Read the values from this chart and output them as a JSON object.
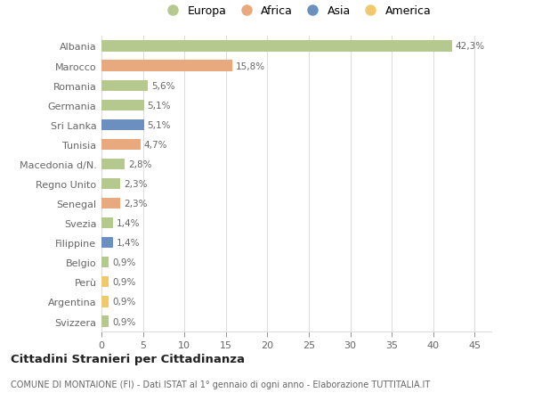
{
  "countries": [
    "Albania",
    "Marocco",
    "Romania",
    "Germania",
    "Sri Lanka",
    "Tunisia",
    "Macedonia d/N.",
    "Regno Unito",
    "Senegal",
    "Svezia",
    "Filippine",
    "Belgio",
    "Perù",
    "Argentina",
    "Svizzera"
  ],
  "values": [
    42.3,
    15.8,
    5.6,
    5.1,
    5.1,
    4.7,
    2.8,
    2.3,
    2.3,
    1.4,
    1.4,
    0.9,
    0.9,
    0.9,
    0.9
  ],
  "labels": [
    "42,3%",
    "15,8%",
    "5,6%",
    "5,1%",
    "5,1%",
    "4,7%",
    "2,8%",
    "2,3%",
    "2,3%",
    "1,4%",
    "1,4%",
    "0,9%",
    "0,9%",
    "0,9%",
    "0,9%"
  ],
  "continents": [
    "Europa",
    "Africa",
    "Europa",
    "Europa",
    "Asia",
    "Africa",
    "Europa",
    "Europa",
    "Africa",
    "Europa",
    "Asia",
    "Europa",
    "America",
    "America",
    "Europa"
  ],
  "continent_colors": {
    "Europa": "#b5c98e",
    "Africa": "#e8a97e",
    "Asia": "#6b8fbf",
    "America": "#f0c96e"
  },
  "xlim": [
    0,
    47
  ],
  "xticks": [
    0,
    5,
    10,
    15,
    20,
    25,
    30,
    35,
    40,
    45
  ],
  "title": "Cittadini Stranieri per Cittadinanza",
  "subtitle": "COMUNE DI MONTAIONE (FI) - Dati ISTAT al 1° gennaio di ogni anno - Elaborazione TUTTITALIA.IT",
  "background_color": "#ffffff",
  "grid_color": "#dddddd",
  "bar_height": 0.55,
  "legend_order": [
    "Europa",
    "Africa",
    "Asia",
    "America"
  ]
}
